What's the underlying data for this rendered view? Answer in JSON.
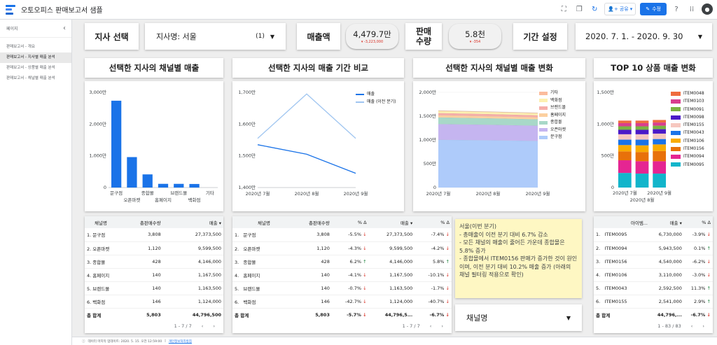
{
  "app": {
    "title": "오토오피스 판매보고서 샘플",
    "share_label": "공유",
    "edit_label": "수정"
  },
  "sidebar": {
    "header": "페이지",
    "items": [
      {
        "label": "판매보고서 - 개요",
        "active": false
      },
      {
        "label": "판매보고서 - 지사별 매출 분석",
        "active": true
      },
      {
        "label": "판매보고서 - 상품별 매출 분석",
        "active": false
      },
      {
        "label": "판매보고서 - 채널별 매출 분석",
        "active": false
      }
    ]
  },
  "controls": {
    "branch_button": "지사 선택",
    "branch_select_label": "지사명: 서울",
    "branch_select_count": "(1)",
    "sales_label": "매출액",
    "sales_value": "4,479.7만",
    "sales_delta": "▾ -3,223,000",
    "qty_label_1": "판매",
    "qty_label_2": "수량",
    "qty_value": "5.8천",
    "qty_delta": "▾ -354",
    "period_button": "기간 설정",
    "period_value": "2020. 7. 1. - 2020. 9. 30"
  },
  "headers": {
    "h1": "선택한 지사의 채널별 매출",
    "h2": "선택한 지사의 매출 기간 비교",
    "h3": "선택한 지사의 채널별 매출 변화",
    "h4": "TOP 10 상품 매출 변화"
  },
  "colors": {
    "blue": "#1a73e8",
    "lightblue": "#9fc5f0",
    "red": "#d93025",
    "green": "#188038"
  },
  "chart_data": [
    {
      "type": "bar",
      "categories": [
        "문구점",
        "오픈마켓",
        "종합몰",
        "홈페이지",
        "브랜드몰",
        "백화점",
        "기타"
      ],
      "values": [
        27373500,
        9599500,
        4146000,
        1167500,
        1163500,
        1124000,
        0
      ],
      "ylim": [
        0,
        30000000
      ],
      "yticks": [
        "0",
        "1,000만",
        "2,000만",
        "3,000만"
      ]
    },
    {
      "type": "line",
      "x": [
        "2020년 7월",
        "2020년 8월",
        "2020년 9월"
      ],
      "series": [
        {
          "name": "매출",
          "values": [
            15350000,
            15050000,
            14450000
          ]
        },
        {
          "name": "매출 (이전 분기)",
          "values": [
            15550000,
            16950000,
            15550000
          ]
        }
      ],
      "ylim": [
        14000000,
        17000000
      ],
      "yticks": [
        "1,400만",
        "1,500만",
        "1,600만",
        "1,700만"
      ]
    },
    {
      "type": "area",
      "x": [
        "2020년 7월",
        "2020년 8월",
        "2020년 9월"
      ],
      "series": [
        {
          "name": "문구점",
          "values": [
            10050000,
            9950000,
            9800000
          ],
          "color": "#aecbfa"
        },
        {
          "name": "오픈마켓",
          "values": [
            3300000,
            3250000,
            3200000
          ],
          "color": "#c5b5f0"
        },
        {
          "name": "종합몰",
          "values": [
            1400000,
            1350000,
            1350000
          ],
          "color": "#a8d8c8"
        },
        {
          "name": "홈페이지",
          "values": [
            450000,
            450000,
            420000
          ],
          "color": "#fcd0a0"
        },
        {
          "name": "브랜드몰",
          "values": [
            450000,
            440000,
            420000
          ],
          "color": "#f6aea9"
        },
        {
          "name": "백화점",
          "values": [
            450000,
            440000,
            420000
          ],
          "color": "#fdf0b0"
        },
        {
          "name": "기타",
          "values": [
            80000,
            80000,
            80000
          ],
          "color": "#fbbc9c"
        }
      ],
      "legend_order": [
        "기타",
        "백화점",
        "브랜드몰",
        "홈페이지",
        "종합몰",
        "오픈마켓",
        "문구점"
      ],
      "ylim": [
        0,
        20000000
      ],
      "yticks": [
        "0",
        "500만",
        "1,000만",
        "1,500만",
        "2,000만"
      ]
    },
    {
      "type": "bar",
      "stacked": true,
      "x": [
        "2020년 7월",
        "2020년 8월",
        "2020년 9월"
      ],
      "series": [
        {
          "name": "ITEM0095",
          "values": [
            2300000,
            2200000,
            2200000
          ],
          "color": "#12b5cb"
        },
        {
          "name": "ITEM0094",
          "values": [
            2000000,
            1950000,
            1950000
          ],
          "color": "#e52592"
        },
        {
          "name": "ITEM0156",
          "values": [
            1400000,
            1450000,
            1600000
          ],
          "color": "#e8710a"
        },
        {
          "name": "ITEM0106",
          "values": [
            1000000,
            1050000,
            1050000
          ],
          "color": "#f9ab00"
        },
        {
          "name": "ITEM0043",
          "values": [
            850000,
            900000,
            850000
          ],
          "color": "#1a73e8"
        },
        {
          "name": "ITEM0155",
          "values": [
            850000,
            850000,
            850000
          ],
          "color": "#f6c7c0"
        },
        {
          "name": "ITEM0098",
          "values": [
            700000,
            700000,
            700000
          ],
          "color": "#4a1ac8"
        },
        {
          "name": "ITEM0091",
          "values": [
            550000,
            550000,
            550000
          ],
          "color": "#7cb342"
        },
        {
          "name": "ITEM0103",
          "values": [
            500000,
            500000,
            500000
          ],
          "color": "#d93e8f"
        },
        {
          "name": "ITEM0048",
          "values": [
            400000,
            400000,
            400000
          ],
          "color": "#ef6c3e"
        }
      ],
      "legend_order": [
        "ITEM0048",
        "ITEM0103",
        "ITEM0091",
        "ITEM0098",
        "ITEM0155",
        "ITEM0043",
        "ITEM0106",
        "ITEM0156",
        "ITEM0094",
        "ITEM0095"
      ],
      "ylim": [
        0,
        15000000
      ],
      "yticks": [
        "0",
        "500만",
        "1,000만",
        "1,500만"
      ],
      "sub_xlabel": "2020년 8월"
    }
  ],
  "table1": {
    "headers": [
      "채널명",
      "총판매수량",
      "매출 ▾"
    ],
    "rows": [
      [
        "1.",
        "문구점",
        "3,808",
        "27,373,500"
      ],
      [
        "2.",
        "오픈마켓",
        "1,120",
        "9,599,500"
      ],
      [
        "3.",
        "종합몰",
        "428",
        "4,146,000"
      ],
      [
        "4.",
        "홈페이지",
        "140",
        "1,167,500"
      ],
      [
        "5.",
        "브랜드몰",
        "140",
        "1,163,500"
      ],
      [
        "6.",
        "백화점",
        "146",
        "1,124,000"
      ]
    ],
    "total": [
      "총 합계",
      "5,803",
      "44,796,500"
    ],
    "pager": "1 - 7 / 7"
  },
  "table2": {
    "headers": [
      "채널명",
      "총판매수량",
      "% Δ",
      "매출 ▾",
      "% Δ"
    ],
    "rows": [
      [
        "1.",
        "문구점",
        "3,808",
        "-5.5%",
        "27,373,500",
        "-7.4%"
      ],
      [
        "2.",
        "오픈마켓",
        "1,120",
        "-4.3%",
        "9,599,500",
        "-4.2%"
      ],
      [
        "3.",
        "종합몰",
        "428",
        "6.2%",
        "4,146,000",
        "5.8%"
      ],
      [
        "4.",
        "홈페이지",
        "140",
        "-4.1%",
        "1,167,500",
        "-10.1%"
      ],
      [
        "5.",
        "브랜드몰",
        "140",
        "-0.7%",
        "1,163,500",
        "-1.7%"
      ],
      [
        "6.",
        "백화점",
        "146",
        "-42.7%",
        "1,124,000",
        "-40.7%"
      ]
    ],
    "total": [
      "총 합계",
      "5,803",
      "-5.7%",
      "44,796,5...",
      "-6.7%"
    ],
    "pager": "1 - 7 / 7"
  },
  "note": {
    "lines": [
      "서울(이번 분기)",
      "- 총매출이 이전 분기 대비 6.7% 감소",
      "- 모든 채널의 매출이 줄어든 가운데 종합몰은 5.8% 증가",
      "- 종합몰에서 ITEM0156 판매가 증가한 것이 원인이며, 이전 분기 대비 10.2% 매출 증가 (아래의 채널 필터링 적용으로 확인)"
    ]
  },
  "channel_select": {
    "label": "채널명"
  },
  "table4": {
    "headers": [
      "아이템...",
      "매출 ▾",
      "% Δ"
    ],
    "rows": [
      [
        "1.",
        "ITEM0095",
        "6,730,000",
        "-3.9%"
      ],
      [
        "2.",
        "ITEM0094",
        "5,943,500",
        "0.1%"
      ],
      [
        "3.",
        "ITEM0156",
        "4,540,000",
        "-6.2%"
      ],
      [
        "4.",
        "ITEM0106",
        "3,110,000",
        "-3.0%"
      ],
      [
        "5.",
        "ITEM0043",
        "2,592,500",
        "11.3%"
      ],
      [
        "6.",
        "ITEM0155",
        "2,541,000",
        "2.9%"
      ]
    ],
    "total": [
      "총 합계",
      "44,796,...",
      "-6.7%"
    ],
    "pager": "1 - 83 / 83"
  },
  "footer": {
    "text": "데이터 마지막 업데이트: 2020. 5. 15. 오전 12:59:00",
    "link": "개인정보처리방침"
  }
}
